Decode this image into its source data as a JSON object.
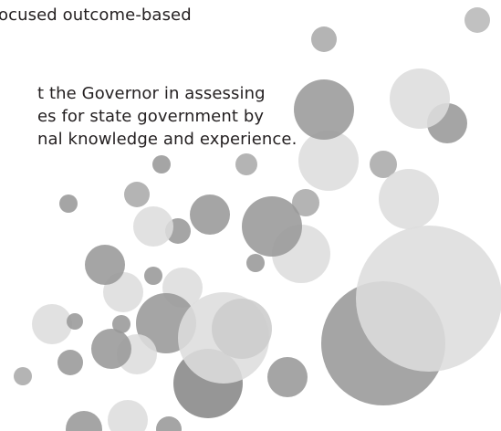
{
  "text": {
    "lines": [
      "ocused outcome-based",
      "t the Governor in assessing",
      "es for state government by",
      "nal knowledge and experience."
    ]
  }
}
